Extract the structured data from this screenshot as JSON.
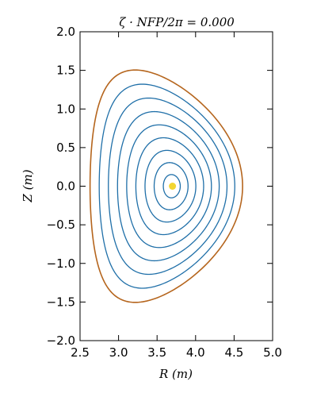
{
  "chart_data": {
    "type": "line",
    "title": "ζ · NFP/2π = 0.000",
    "xlabel": "R (m)",
    "ylabel": "Z (m)",
    "xlim": [
      2.5,
      5.0
    ],
    "ylim": [
      -2.0,
      2.0
    ],
    "xticks": [
      2.5,
      3.0,
      3.5,
      4.0,
      4.5,
      5.0
    ],
    "xtick_labels": [
      "2.5",
      "3.0",
      "3.5",
      "4.0",
      "4.5",
      "5.0"
    ],
    "yticks": [
      2.0,
      1.5,
      1.0,
      0.5,
      0.0,
      -0.5,
      -1.0,
      -1.5,
      -2.0
    ],
    "ytick_labels": [
      "2.0",
      "1.5",
      "1.0",
      "0.5",
      "0.0",
      "−0.5",
      "−1.0",
      "−1.5",
      "−2.0"
    ],
    "grid": false,
    "series": [
      {
        "name": "flux-surface-1",
        "s": 0.1111,
        "color": "#1f6fa8"
      },
      {
        "name": "flux-surface-2",
        "s": 0.2222,
        "color": "#1f6fa8"
      },
      {
        "name": "flux-surface-3",
        "s": 0.3333,
        "color": "#1f6fa8"
      },
      {
        "name": "flux-surface-4",
        "s": 0.4444,
        "color": "#1f6fa8"
      },
      {
        "name": "flux-surface-5",
        "s": 0.5556,
        "color": "#1f6fa8"
      },
      {
        "name": "flux-surface-6",
        "s": 0.6667,
        "color": "#1f6fa8"
      },
      {
        "name": "flux-surface-7",
        "s": 0.7778,
        "color": "#1f6fa8"
      },
      {
        "name": "flux-surface-8",
        "s": 0.8889,
        "color": "#1f6fa8"
      },
      {
        "name": "boundary",
        "s": 1.0,
        "color": "#b5651d"
      }
    ],
    "magnetic_axis": {
      "R": 3.7,
      "Z": 0.0,
      "color": "#f2d531"
    },
    "boundary_shape": {
      "R0": 3.62,
      "a": 0.99,
      "kappa": 1.52,
      "delta": 0.42,
      "axis_R": 3.7,
      "axis_a_scale": 0.12
    }
  }
}
